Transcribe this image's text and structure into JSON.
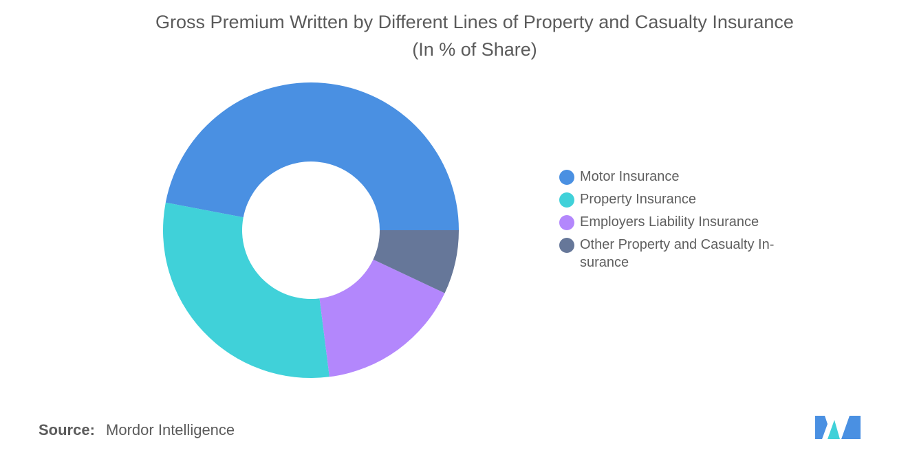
{
  "title_line1": "Gross Premium Written by Different Lines of Property and Casualty Insurance",
  "title_line2": "(In % of Share)",
  "source": {
    "label": "Source:",
    "value": "Mordor Intelligence"
  },
  "chart_data": {
    "type": "pie",
    "subtype": "donut",
    "title": "Gross Premium Written by Different Lines of Property and Casualty Insurance (In % of Share)",
    "legend_placement": "right",
    "categories": [
      "Motor Insurance",
      "Property Insurance",
      "Employers Liability Insurance",
      "Other Property and Casualty Insurance"
    ],
    "legend_labels": [
      "Motor Insurance",
      "Property Insurance",
      "Employers Liability Insurance",
      "Other Property and Casualty In-\nsurance"
    ],
    "values": [
      47,
      30,
      16,
      7
    ],
    "colors": [
      "#4a90e2",
      "#40d1d9",
      "#b387fc",
      "#667799"
    ]
  },
  "logo": {
    "icon": "mordor-intelligence-logo",
    "colors": [
      "#4a90e2",
      "#40d1d9"
    ]
  }
}
